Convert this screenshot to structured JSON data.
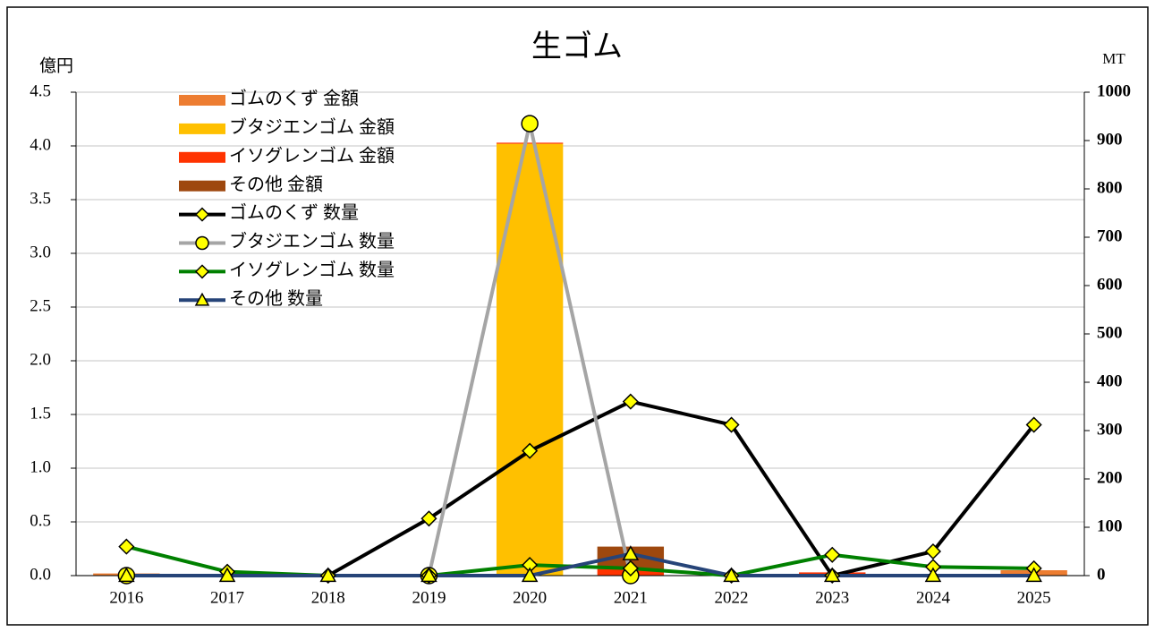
{
  "chart_data": {
    "type": "bar_line_combo",
    "title": "生ゴム",
    "y_label": "億円",
    "y2_label": "MT",
    "categories": [
      "2016",
      "2017",
      "2018",
      "2019",
      "2020",
      "2021",
      "2022",
      "2023",
      "2024",
      "2025"
    ],
    "ylim": [
      0,
      4.5
    ],
    "yticks": [
      {
        "value": 0,
        "label": "0.0"
      },
      {
        "value": 0.5,
        "label": "0.5"
      },
      {
        "value": 1,
        "label": "1.0"
      },
      {
        "value": 1.5,
        "label": "1.5"
      },
      {
        "value": 2,
        "label": "2.0"
      },
      {
        "value": 2.5,
        "label": "2.5"
      },
      {
        "value": 3,
        "label": "3.0"
      },
      {
        "value": 3.5,
        "label": "3.5"
      },
      {
        "value": 4,
        "label": "4.0"
      },
      {
        "value": 4.5,
        "label": "4.5"
      }
    ],
    "y2lim": [
      0,
      1000
    ],
    "y2ticks": [
      0,
      100,
      200,
      300,
      400,
      500,
      600,
      700,
      800,
      900,
      1000
    ],
    "grid": true,
    "legend": "upper left",
    "series": [
      {
        "name": "ゴムのくず 金額",
        "type": "bar",
        "color": "#ED7D31",
        "values": [
          0.02,
          0,
          0,
          0,
          0,
          0,
          0,
          0,
          0,
          0.05
        ]
      },
      {
        "name": "ブタジエンゴム 金額",
        "type": "bar",
        "color": "#FFC000",
        "values": [
          0,
          0,
          0,
          0,
          4.02,
          0,
          0,
          0,
          0,
          0
        ]
      },
      {
        "name": "イソグレンゴム 金額",
        "type": "bar",
        "color": "#FF3300",
        "values": [
          0,
          0,
          0,
          0,
          0.01,
          0.06,
          0,
          0.03,
          0,
          0
        ]
      },
      {
        "name": "その他 金額",
        "type": "bar",
        "color": "#9E480E",
        "values": [
          0,
          0,
          0,
          0,
          0,
          0.21,
          0,
          0,
          0,
          0
        ]
      },
      {
        "name": "ゴムのくず 数量",
        "type": "line",
        "axis": "y2",
        "color": "#000000",
        "marker": "diamond",
        "marker_color": "#FFFF00",
        "values": [
          null,
          null,
          0,
          118,
          258,
          360,
          312,
          0,
          50,
          312
        ]
      },
      {
        "name": "ブタジエンゴム 数量",
        "type": "line",
        "axis": "y2",
        "color": "#A5A5A5",
        "marker": "circle",
        "marker_color": "#FFFF00",
        "values": [
          0,
          null,
          null,
          0,
          935,
          0,
          null,
          null,
          null,
          null
        ]
      },
      {
        "name": "イソグレンゴム 数量",
        "type": "line",
        "axis": "y2",
        "color": "#008000",
        "marker": "diamond",
        "marker_color": "#FFFF00",
        "values": [
          60,
          8,
          0,
          0,
          22,
          15,
          0,
          43,
          18,
          15
        ]
      },
      {
        "name": "その他 数量",
        "type": "line",
        "axis": "y2",
        "color": "#264478",
        "marker": "triangle",
        "marker_color": "#FFFF00",
        "values": [
          0,
          0,
          0,
          0,
          0,
          45,
          0,
          0,
          0,
          0
        ]
      }
    ]
  }
}
